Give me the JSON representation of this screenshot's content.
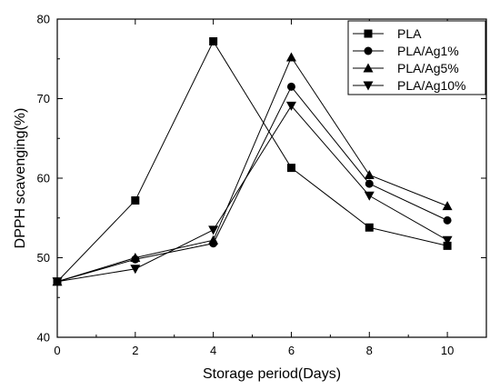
{
  "chart_data": {
    "type": "line",
    "title": "",
    "xlabel": "Storage period(Days)",
    "ylabel": "DPPH scavenging(%)",
    "xlim": [
      0,
      11
    ],
    "ylim": [
      40,
      80
    ],
    "xticks": [
      0,
      2,
      4,
      6,
      8,
      10
    ],
    "yticks": [
      40,
      50,
      60,
      70,
      80
    ],
    "grid": false,
    "legend_position": "top-right",
    "x": [
      0,
      2,
      4,
      6,
      8,
      10
    ],
    "series": [
      {
        "name": "PLA",
        "marker": "square",
        "values": [
          47.0,
          57.2,
          77.2,
          61.3,
          53.8,
          51.5
        ]
      },
      {
        "name": "PLA/Ag1%",
        "marker": "circle",
        "values": [
          47.0,
          49.8,
          51.8,
          71.5,
          59.3,
          54.7
        ]
      },
      {
        "name": "PLA/Ag5%",
        "marker": "triangle-up",
        "values": [
          47.0,
          50.0,
          52.2,
          75.2,
          60.4,
          56.5
        ]
      },
      {
        "name": "PLA/Ag10%",
        "marker": "triangle-down",
        "values": [
          47.0,
          48.6,
          53.5,
          69.1,
          57.8,
          52.2
        ]
      }
    ],
    "color": "#000000"
  }
}
